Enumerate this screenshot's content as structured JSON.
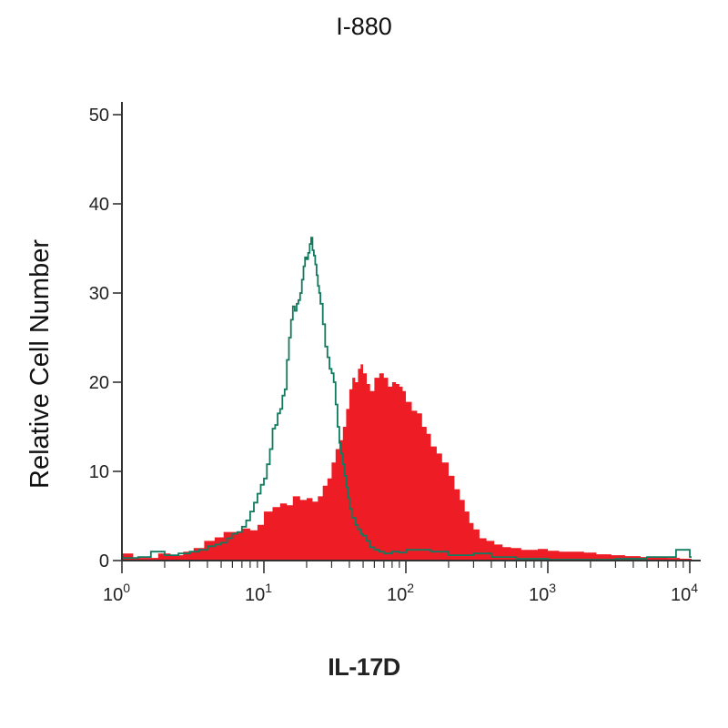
{
  "chart_data": {
    "type": "histogram",
    "title": "I-880",
    "xlabel": "IL-17D",
    "ylabel": "Relative Cell Number",
    "x_scale": "log",
    "xlim": [
      1,
      10000
    ],
    "ylim": [
      0,
      50
    ],
    "grid": false,
    "y_ticks": [
      "0",
      "10",
      "20",
      "30",
      "40",
      "50"
    ],
    "x_ticks": [
      {
        "base": "10",
        "exp": "0"
      },
      {
        "base": "10",
        "exp": "1"
      },
      {
        "base": "10",
        "exp": "2"
      },
      {
        "base": "10",
        "exp": "3"
      },
      {
        "base": "10",
        "exp": "4"
      }
    ],
    "colors": {
      "filled": "#ee1c25",
      "outline": "#127a5e",
      "axis": "#333333"
    },
    "series": [
      {
        "style": "filled",
        "x": [
          1.0,
          1.2,
          1.5,
          1.8,
          2.2,
          2.7,
          3.2,
          3.8,
          4.5,
          5.2,
          6.0,
          7.0,
          8.0,
          9.0,
          10.0,
          11.5,
          13.0,
          14.5,
          16.0,
          18.0,
          20.0,
          22.0,
          24.0,
          26.0,
          28.0,
          30.0,
          32.0,
          34.0,
          36.0,
          38.0,
          40.0,
          42.0,
          44.0,
          46.0,
          48.0,
          50.0,
          53.0,
          56.0,
          60.0,
          65.0,
          70.0,
          75.0,
          80.0,
          85.0,
          90.0,
          95.0,
          100.0,
          110.0,
          120.0,
          130.0,
          140.0,
          150.0,
          165.0,
          180.0,
          200.0,
          220.0,
          240.0,
          260.0,
          280.0,
          300.0,
          330.0,
          370.0,
          420.0,
          480.0,
          550.0,
          650.0,
          750.0,
          850.0,
          1000.0,
          1200.0,
          1500.0,
          1800.0,
          2200.0,
          2800.0,
          3500.0,
          4500.0,
          5500.0,
          7000.0,
          8500.0,
          10000.0
        ],
        "y": [
          0.8,
          0.3,
          0.3,
          0.8,
          0.6,
          1.0,
          1.4,
          2.2,
          2.6,
          3.2,
          3.2,
          3.6,
          3.4,
          4.0,
          5.5,
          6.0,
          6.4,
          6.2,
          7.2,
          6.8,
          7.0,
          6.6,
          7.2,
          8.4,
          9.2,
          11.0,
          12.5,
          13.5,
          15.0,
          17.0,
          19.2,
          20.5,
          20.0,
          21.5,
          22.0,
          21.0,
          19.8,
          19.0,
          20.5,
          21.0,
          20.5,
          19.5,
          20.0,
          19.8,
          19.5,
          19.0,
          17.8,
          16.8,
          16.5,
          15.0,
          14.2,
          12.8,
          12.0,
          11.0,
          9.5,
          8.0,
          6.8,
          5.5,
          4.2,
          3.5,
          2.5,
          2.2,
          1.8,
          1.5,
          1.4,
          1.2,
          1.2,
          1.3,
          1.1,
          1.0,
          1.0,
          0.9,
          0.7,
          0.6,
          0.5,
          0.4,
          0.4,
          0.3,
          0.2,
          0.2
        ]
      },
      {
        "style": "outline",
        "x": [
          1.0,
          1.3,
          1.6,
          2.0,
          2.5,
          3.0,
          3.5,
          4.0,
          4.5,
          5.0,
          5.5,
          6.0,
          6.5,
          7.0,
          7.5,
          8.0,
          8.5,
          9.0,
          9.5,
          10.0,
          10.5,
          11.0,
          11.5,
          12.0,
          12.5,
          13.0,
          13.5,
          14.0,
          14.5,
          15.0,
          15.5,
          16.0,
          16.5,
          17.0,
          17.5,
          18.0,
          18.5,
          19.0,
          19.5,
          20.0,
          20.5,
          21.0,
          21.5,
          22.0,
          22.5,
          23.0,
          23.5,
          24.0,
          24.5,
          25.0,
          26.0,
          27.0,
          28.0,
          29.0,
          30.0,
          31.0,
          32.0,
          33.0,
          34.0,
          35.0,
          36.0,
          37.0,
          38.0,
          39.0,
          40.0,
          42.0,
          44.0,
          46.0,
          48.0,
          50.0,
          53.0,
          56.0,
          60.0,
          65.0,
          70.0,
          80.0,
          90.0,
          100.0,
          150.0,
          200.0,
          300.0,
          400.0,
          600.0,
          1000.0,
          3000.0,
          5000.0,
          8000.0,
          10000.0
        ],
        "y": [
          0.3,
          0.4,
          1.0,
          0.6,
          0.8,
          1.0,
          1.2,
          1.6,
          1.8,
          2.0,
          2.5,
          3.0,
          3.2,
          3.8,
          4.5,
          5.5,
          6.5,
          7.5,
          8.5,
          9.2,
          10.8,
          12.5,
          14.8,
          15.2,
          16.5,
          17.0,
          18.5,
          19.2,
          22.5,
          25.0,
          27.0,
          28.5,
          28.0,
          28.8,
          29.2,
          30.0,
          31.5,
          33.0,
          34.0,
          33.8,
          34.5,
          35.5,
          36.2,
          34.8,
          34.2,
          33.2,
          32.0,
          30.8,
          30.0,
          28.8,
          26.5,
          24.0,
          22.8,
          21.5,
          21.0,
          20.0,
          17.5,
          15.0,
          13.2,
          12.0,
          10.8,
          9.5,
          8.2,
          7.0,
          5.8,
          4.8,
          4.0,
          3.5,
          3.0,
          2.8,
          2.2,
          1.5,
          1.2,
          1.0,
          0.8,
          1.0,
          0.9,
          1.2,
          1.0,
          0.6,
          0.8,
          0.4,
          0.2,
          0.1,
          0.2,
          0.4,
          1.2,
          0.4
        ]
      }
    ]
  }
}
